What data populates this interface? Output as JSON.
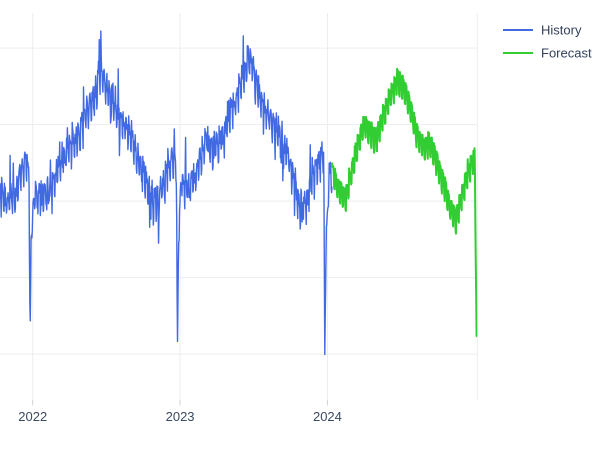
{
  "chart_data": {
    "type": "line",
    "title": "",
    "x_axis": {
      "kind": "time-years",
      "range": [
        2021.778,
        2025.017
      ],
      "ticks": [
        {
          "t": 2022,
          "label": "2022"
        },
        {
          "t": 2023,
          "label": "2023"
        },
        {
          "t": 2024,
          "label": "2024"
        }
      ],
      "gridlines": [
        2022,
        2023,
        2024,
        2025.017
      ]
    },
    "y_axis": {
      "visible": false,
      "note": "axis labels cropped outside the image; normalized units",
      "range": [
        8,
        109.2
      ],
      "gridlines": [
        20,
        40,
        60,
        80,
        100
      ]
    },
    "grid": {
      "color": "#ebedf0",
      "tick_color": "#cfd4da"
    },
    "legend": {
      "position": "top-right",
      "entries": [
        {
          "label": "History",
          "color": "#4169E1"
        },
        {
          "label": "Forecast",
          "color": "#32CD32"
        }
      ]
    },
    "series": [
      {
        "name": "History",
        "color": "#4169E1",
        "frequency": "daily",
        "line_width": 1.4,
        "weekly_amp": 3.1,
        "noise_sd": 1.55,
        "tail_prob": 0.03,
        "seed": 20220101,
        "anchors": [
          [
            2021.778,
            62.9
          ],
          [
            2021.83,
            59.0
          ],
          [
            2021.88,
            61.6
          ],
          [
            2021.93,
            68.1
          ],
          [
            2021.955,
            72.0
          ],
          [
            2021.975,
            66.8
          ],
          [
            2021.982,
            23.7
          ],
          [
            2021.99,
            52.4
          ],
          [
            2022.01,
            61.6
          ],
          [
            2022.06,
            60.3
          ],
          [
            2022.12,
            62.9
          ],
          [
            2022.18,
            68.1
          ],
          [
            2022.24,
            73.3
          ],
          [
            2022.3,
            75.9
          ],
          [
            2022.36,
            81.7
          ],
          [
            2022.42,
            87.7
          ],
          [
            2022.46,
            93.7
          ],
          [
            2022.5,
            90.3
          ],
          [
            2022.55,
            84.3
          ],
          [
            2022.6,
            80.7
          ],
          [
            2022.66,
            77.3
          ],
          [
            2022.72,
            69.4
          ],
          [
            2022.78,
            64.2
          ],
          [
            2022.82,
            59.0
          ],
          [
            2022.86,
            60.8
          ],
          [
            2022.9,
            66.0
          ],
          [
            2022.95,
            71.2
          ],
          [
            2022.975,
            68.6
          ],
          [
            2022.982,
            20.5
          ],
          [
            2022.99,
            49.8
          ],
          [
            2023.01,
            64.2
          ],
          [
            2023.06,
            62.4
          ],
          [
            2023.12,
            68.6
          ],
          [
            2023.18,
            75.4
          ],
          [
            2023.22,
            73.3
          ],
          [
            2023.27,
            74.4
          ],
          [
            2023.32,
            80.7
          ],
          [
            2023.38,
            86.4
          ],
          [
            2023.43,
            92.2
          ],
          [
            2023.47,
            97.9
          ],
          [
            2023.51,
            91.6
          ],
          [
            2023.56,
            84.8
          ],
          [
            2023.61,
            81.2
          ],
          [
            2023.67,
            77.0
          ],
          [
            2023.72,
            72.8
          ],
          [
            2023.77,
            65.0
          ],
          [
            2023.82,
            57.1
          ],
          [
            2023.87,
            61.3
          ],
          [
            2023.92,
            68.6
          ],
          [
            2023.95,
            70.7
          ],
          [
            2023.975,
            72.0
          ],
          [
            2023.982,
            19.0
          ],
          [
            2023.99,
            47.2
          ],
          [
            2024.01,
            66.8
          ],
          [
            2024.03,
            68.1
          ]
        ]
      },
      {
        "name": "Forecast",
        "color": "#32CD32",
        "frequency": "daily",
        "line_width": 2.0,
        "weekly_amp": 2.9,
        "noise_sd": 0.4,
        "tail_prob": 0.0,
        "seed": 20240101,
        "anchors": [
          [
            2024.032,
            67.6
          ],
          [
            2024.08,
            62.9
          ],
          [
            2024.12,
            60.3
          ],
          [
            2024.17,
            68.6
          ],
          [
            2024.21,
            75.4
          ],
          [
            2024.25,
            80.1
          ],
          [
            2024.29,
            78.0
          ],
          [
            2024.33,
            75.9
          ],
          [
            2024.38,
            82.2
          ],
          [
            2024.43,
            88.0
          ],
          [
            2024.475,
            91.6
          ],
          [
            2024.52,
            89.5
          ],
          [
            2024.57,
            83.3
          ],
          [
            2024.61,
            77.0
          ],
          [
            2024.655,
            73.9
          ],
          [
            2024.69,
            75.4
          ],
          [
            2024.73,
            72.0
          ],
          [
            2024.78,
            65.5
          ],
          [
            2024.83,
            59.0
          ],
          [
            2024.87,
            55.0
          ],
          [
            2024.91,
            60.8
          ],
          [
            2024.95,
            66.8
          ],
          [
            2024.98,
            70.0
          ],
          [
            2025.0,
            71.8
          ],
          [
            2025.012,
            24.4
          ]
        ]
      }
    ]
  }
}
